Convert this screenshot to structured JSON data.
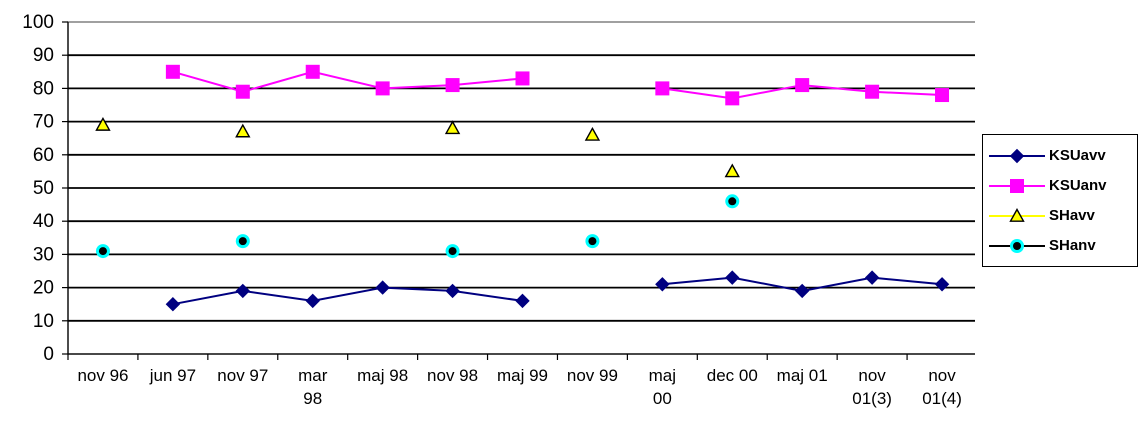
{
  "chart_data": {
    "type": "line",
    "categories": [
      "nov 96",
      "jun  97",
      "nov 97",
      "mar 98",
      "maj 98",
      "nov 98",
      "maj 99",
      "nov 99",
      "maj 00",
      "dec 00",
      "maj 01",
      "nov 01(3)",
      "nov 01(4)"
    ],
    "category_lines": [
      [
        "nov 96"
      ],
      [
        "jun  97"
      ],
      [
        "nov 97"
      ],
      [
        "mar",
        "98"
      ],
      [
        "maj 98"
      ],
      [
        "nov 98"
      ],
      [
        "maj 99"
      ],
      [
        "nov 99"
      ],
      [
        "maj",
        "00"
      ],
      [
        "dec 00"
      ],
      [
        "maj 01"
      ],
      [
        "nov",
        "01(3)"
      ],
      [
        "nov",
        "01(4)"
      ]
    ],
    "y_ticks": [
      "0",
      "10",
      "20",
      "30",
      "40",
      "50",
      "60",
      "70",
      "80",
      "90",
      "100"
    ],
    "ylim": [
      0,
      100
    ],
    "grid": "horizontal",
    "legend_position": "right",
    "series": [
      {
        "name": "KSUavv",
        "color": "#000080",
        "marker": "diamond",
        "line": true,
        "values": [
          null,
          15,
          19,
          16,
          20,
          19,
          16,
          null,
          21,
          23,
          19,
          23,
          21
        ]
      },
      {
        "name": "KSUanv",
        "color": "#ff00ff",
        "marker": "square",
        "line": true,
        "values": [
          null,
          85,
          79,
          85,
          80,
          81,
          83,
          null,
          80,
          77,
          81,
          79,
          78
        ]
      },
      {
        "name": "SHavv",
        "color": "#ffff00",
        "marker": "triangle",
        "line": false,
        "values": [
          69,
          null,
          67,
          null,
          null,
          68,
          null,
          66,
          null,
          55,
          null,
          null,
          null
        ]
      },
      {
        "name": "SHanv",
        "color": "#00ffff",
        "marker": "circle",
        "line": false,
        "values": [
          31,
          null,
          34,
          null,
          null,
          31,
          null,
          34,
          null,
          46,
          null,
          null,
          null
        ]
      }
    ]
  }
}
